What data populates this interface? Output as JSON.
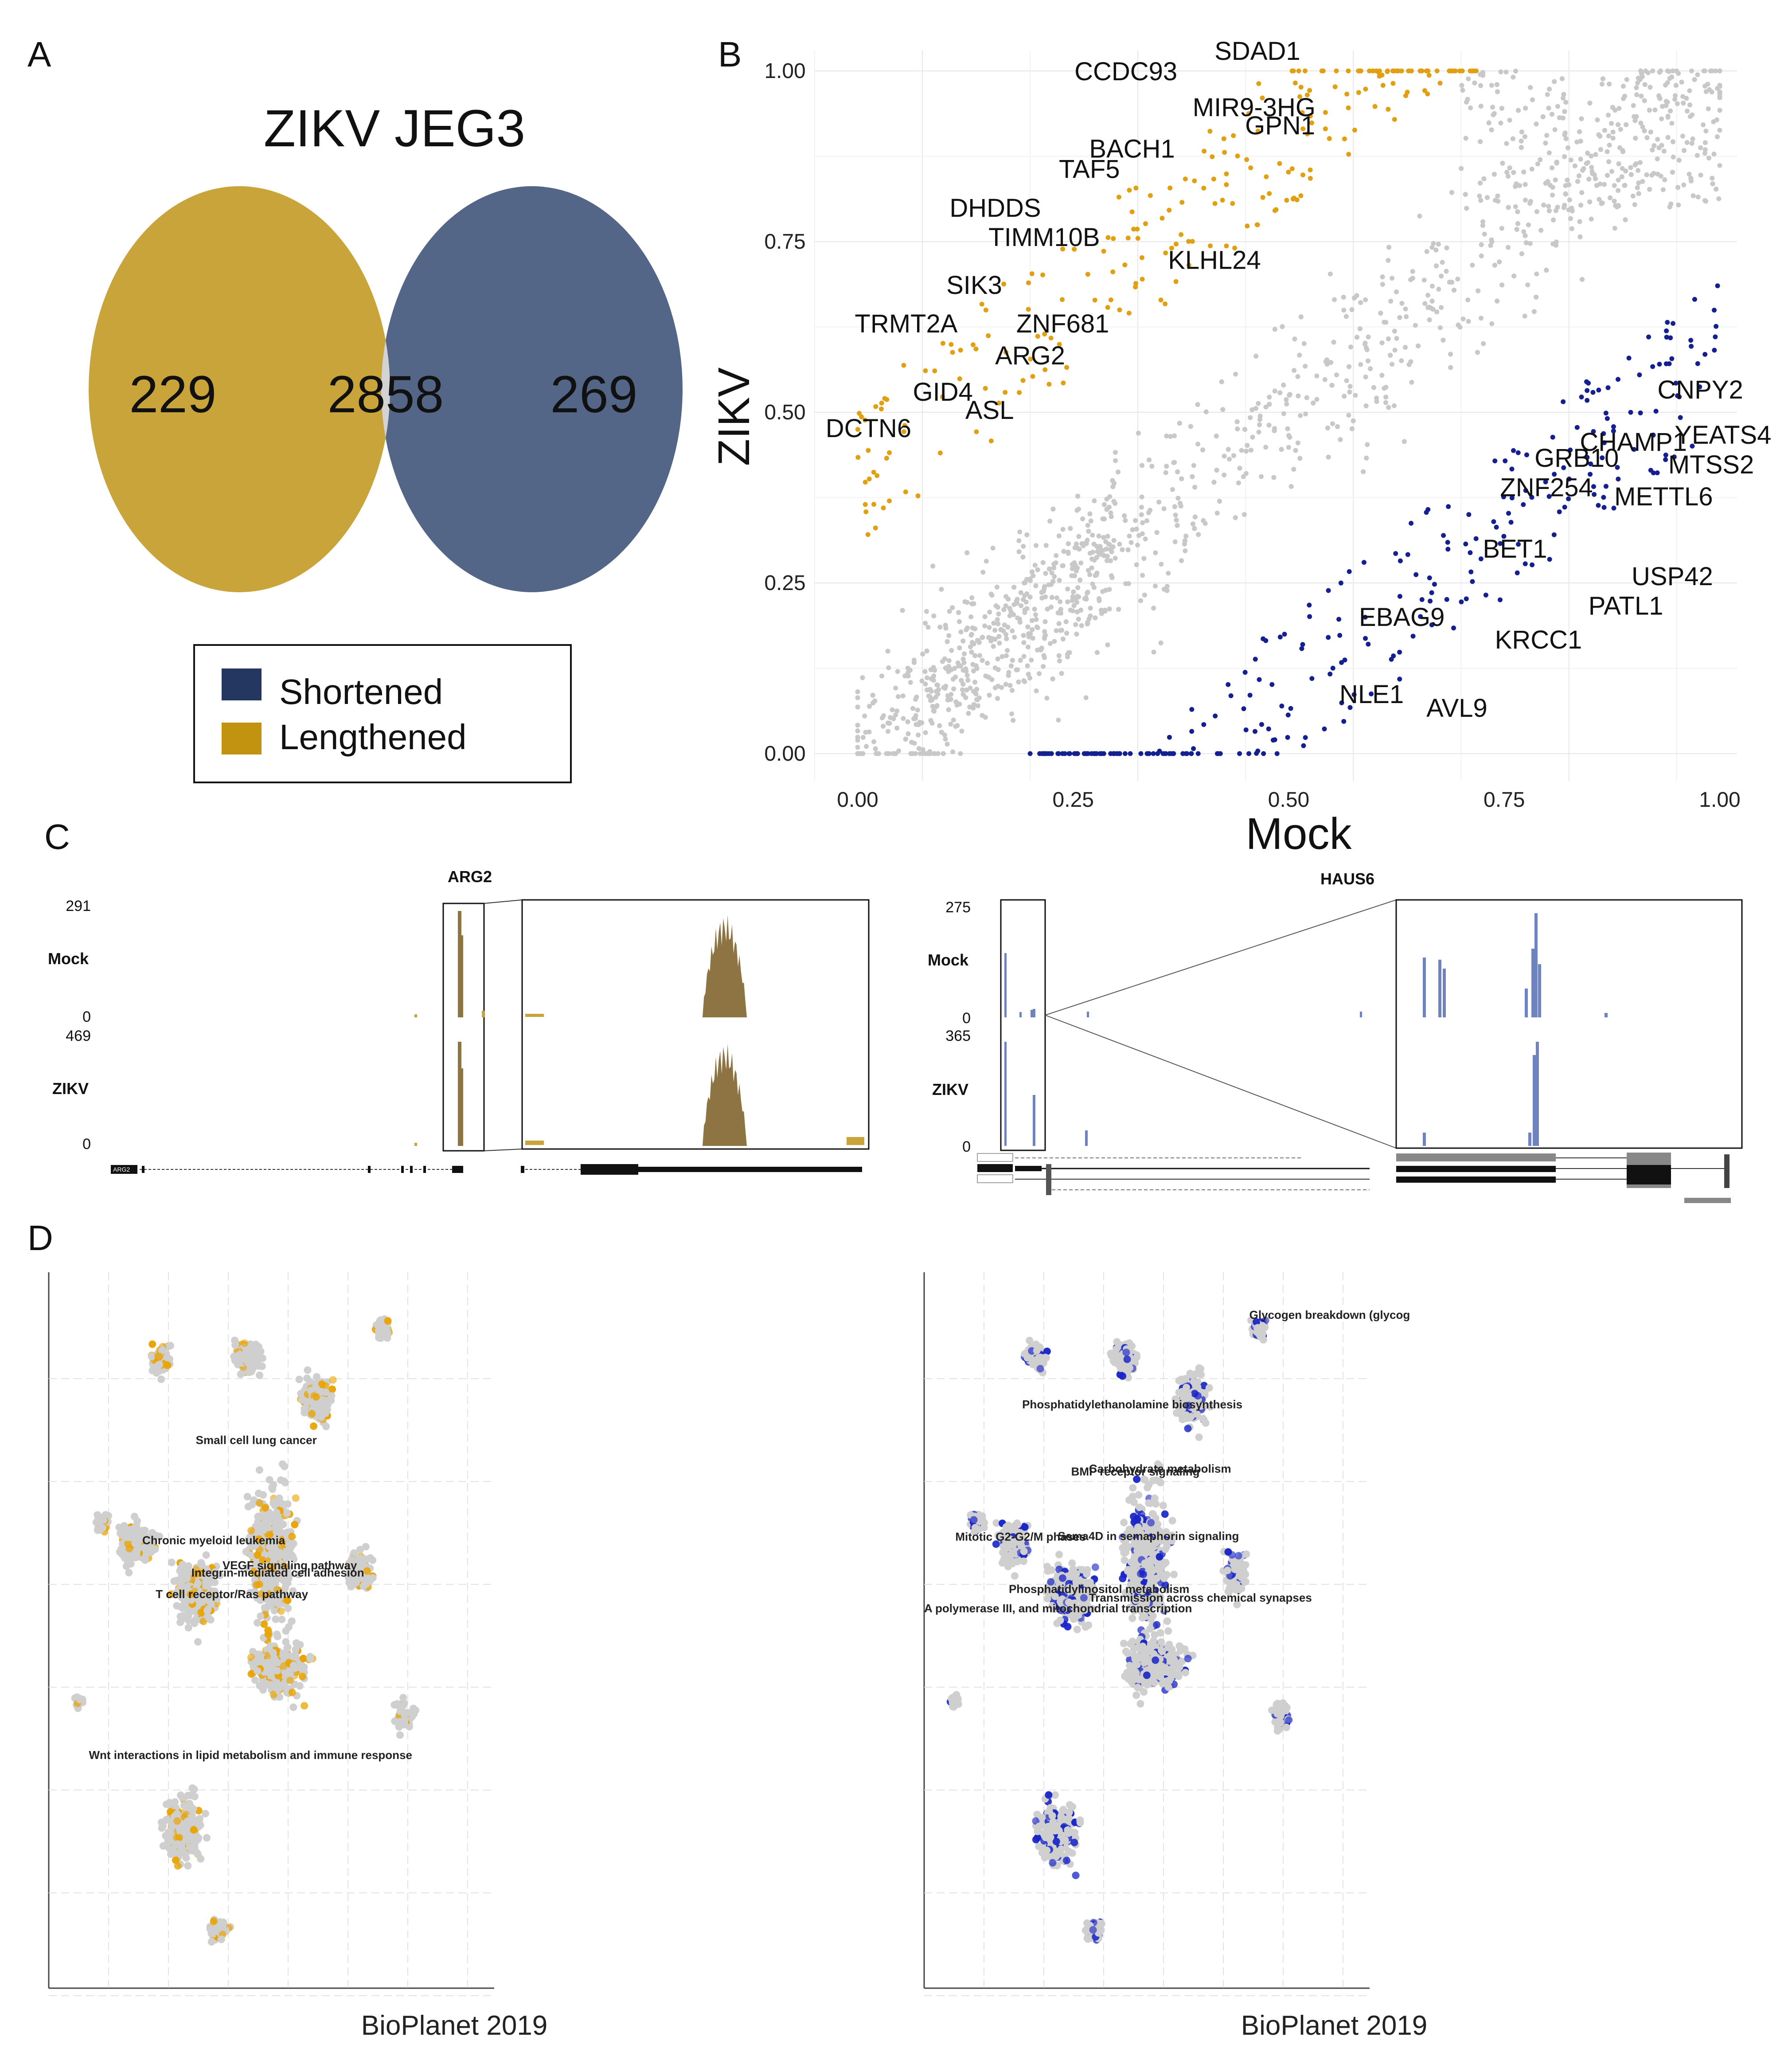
{
  "panels": {
    "A": "A",
    "B": "B",
    "C": "C",
    "D": "D"
  },
  "colors": {
    "lengthened": "#C9A43A",
    "shortened": "#546687",
    "overlap": "#D3D3D3",
    "legend_shortened": "#243760",
    "legend_lengthened": "#C2930F",
    "scatter_lengthened": "#E0A012",
    "scatter_shortened": "#14208F",
    "scatter_unchanged": "#C8C8C8",
    "track_arg2": "#8E7442",
    "track_haus6": "#6F83C0",
    "umap_orange": "#E9A405",
    "umap_blue": "#1A26C8"
  },
  "venn": {
    "title": "ZIKV JEG3",
    "left_only": "229",
    "overlap": "2858",
    "right_only": "269",
    "legend": [
      {
        "label": "Shortened",
        "color": "#243760"
      },
      {
        "label": "Lengthened",
        "color": "#C2930F"
      }
    ]
  },
  "chart_data": [
    {
      "type": "venn",
      "title": "ZIKV JEG3",
      "sets": [
        {
          "name": "Lengthened",
          "only": 229
        },
        {
          "name": "Shortened",
          "only": 269
        }
      ],
      "intersection": 2858
    },
    {
      "type": "scatter",
      "xlabel": "Mock",
      "ylabel": "ZIKV",
      "xlim": [
        0,
        1
      ],
      "ylim": [
        0,
        1
      ],
      "xticks": [
        "0.00",
        "0.25",
        "0.50",
        "0.75",
        "1.00"
      ],
      "yticks": [
        "0.00",
        "0.25",
        "0.50",
        "0.75",
        "1.00"
      ],
      "grid": true,
      "series": [
        {
          "name": "Lengthened",
          "color": "#E0A012",
          "description": "ZIKV much higher than Mock"
        },
        {
          "name": "Shortened",
          "color": "#14208F",
          "description": "ZIKV much lower than Mock"
        }
      ],
      "annotations": [
        {
          "label": "CCDC93",
          "x": 0.38,
          "y": 0.98
        },
        {
          "label": "SDAD1",
          "x": 0.45,
          "y": 1.0
        },
        {
          "label": "MIR9-3HG",
          "x": 0.44,
          "y": 0.95
        },
        {
          "label": "GPN1",
          "x": 0.47,
          "y": 0.92
        },
        {
          "label": "BACH1",
          "x": 0.32,
          "y": 0.86
        },
        {
          "label": "TAF5",
          "x": 0.29,
          "y": 0.84
        },
        {
          "label": "DHDDS",
          "x": 0.23,
          "y": 0.78
        },
        {
          "label": "TIMM10B",
          "x": 0.27,
          "y": 0.75
        },
        {
          "label": "KLHL24",
          "x": 0.36,
          "y": 0.71
        },
        {
          "label": "SIK3",
          "x": 0.18,
          "y": 0.68
        },
        {
          "label": "TRMT2A",
          "x": 0.12,
          "y": 0.62
        },
        {
          "label": "ZNF681",
          "x": 0.22,
          "y": 0.62
        },
        {
          "label": "ARG2",
          "x": 0.18,
          "y": 0.58
        },
        {
          "label": "GID4",
          "x": 0.1,
          "y": 0.52
        },
        {
          "label": "ASL",
          "x": 0.13,
          "y": 0.5
        },
        {
          "label": "DCTN6",
          "x": 0.04,
          "y": 0.47
        },
        {
          "label": "CNPY2",
          "x": 0.92,
          "y": 0.52
        },
        {
          "label": "YEATS4",
          "x": 0.94,
          "y": 0.47
        },
        {
          "label": "CHAMP1",
          "x": 0.83,
          "y": 0.45
        },
        {
          "label": "GRB10",
          "x": 0.78,
          "y": 0.43
        },
        {
          "label": "MTSS2",
          "x": 0.93,
          "y": 0.42
        },
        {
          "label": "ZNF254",
          "x": 0.74,
          "y": 0.39
        },
        {
          "label": "METTL6",
          "x": 0.87,
          "y": 0.38
        },
        {
          "label": "BET1",
          "x": 0.72,
          "y": 0.3
        },
        {
          "label": "USP42",
          "x": 0.89,
          "y": 0.25
        },
        {
          "label": "PATL1",
          "x": 0.84,
          "y": 0.21
        },
        {
          "label": "EBAG9",
          "x": 0.71,
          "y": 0.2
        },
        {
          "label": "KRCC1",
          "x": 0.77,
          "y": 0.18
        },
        {
          "label": "NLE1",
          "x": 0.6,
          "y": 0.1
        },
        {
          "label": "AVL9",
          "x": 0.67,
          "y": 0.08
        }
      ]
    },
    {
      "type": "scatter",
      "title": "",
      "xlabel": "BioPlanet 2019",
      "series": [
        {
          "name": "Lengthened",
          "color": "#E9A405"
        }
      ],
      "annotations": [
        "Small cell lung cancer",
        "Chronic myeloid leukemia",
        "VEGF signaling pathway",
        "Integrin-mediated cell adhesion",
        "T cell receptor/Ras pathway",
        "Wnt interactions in lipid metabolism and immune response"
      ]
    },
    {
      "type": "scatter",
      "title": "",
      "xlabel": "BioPlanet 2019",
      "series": [
        {
          "name": "Shortened",
          "color": "#1A26C8"
        }
      ],
      "annotations": [
        "Glycogen breakdown (glycog",
        "Phosphatidylethanolamine biosynthesis",
        "Carbohydrate metabolism",
        "BMP receptor signaling",
        "Mitotic G2-G2/M phases",
        "Sema4D in semaphorin signaling",
        "Phosphatidylinositol metabolism",
        "Transmission across chemical synapses",
        "A polymerase III, and mitochondrial transcription"
      ]
    }
  ],
  "tracks": {
    "arg2": {
      "gene": "ARG2",
      "mock_label": "Mock",
      "mock_max": "291",
      "mock_min": "0",
      "zikv_label": "ZIKV",
      "zikv_max": "469",
      "zikv_min": "0",
      "gene_tag": "ARG2"
    },
    "haus6": {
      "gene": "HAUS6",
      "mock_label": "Mock",
      "mock_max": "275",
      "mock_min": "0",
      "zikv_label": "ZIKV",
      "zikv_max": "365",
      "zikv_min": "0",
      "gene_tag": "HAUS6"
    }
  },
  "scatter_axes": {
    "xlabel": "Mock",
    "ylabel": "ZIKV",
    "ticks": [
      "0.00",
      "0.25",
      "0.50",
      "0.75",
      "1.00"
    ]
  },
  "umap": {
    "left_xlabel": "BioPlanet 2019",
    "right_xlabel": "BioPlanet 2019"
  }
}
